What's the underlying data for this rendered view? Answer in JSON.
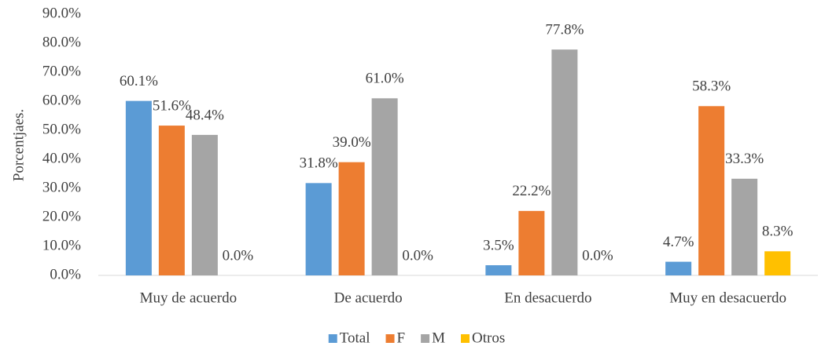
{
  "chart_data": {
    "type": "bar",
    "y_label": "Porcentjaes.",
    "categories": [
      "Muy de acuerdo",
      "De acuerdo",
      "En desacuerdo",
      "Muy en desacuerdo"
    ],
    "series": [
      {
        "name": "Total",
        "color": "#5b9bd5",
        "values": [
          60.1,
          31.8,
          3.5,
          4.7
        ],
        "value_labels": [
          "60.1%",
          "31.8%",
          "3.5%",
          "4.7%"
        ]
      },
      {
        "name": "F",
        "color": "#ed7d31",
        "values": [
          51.6,
          39.0,
          22.2,
          58.3
        ],
        "value_labels": [
          "51.6%",
          "39.0%",
          "22.2%",
          "58.3%"
        ]
      },
      {
        "name": "M",
        "color": "#a5a5a5",
        "values": [
          48.4,
          61.0,
          77.8,
          33.3
        ],
        "value_labels": [
          "48.4%",
          "61.0%",
          "77.8%",
          "33.3%"
        ]
      },
      {
        "name": "Otros",
        "color": "#ffc000",
        "values": [
          0,
          0,
          0,
          8.3
        ],
        "value_labels": [
          "0.0%",
          "0.0%",
          "0.0%",
          "8.3%"
        ]
      }
    ],
    "ylim": [
      0,
      90
    ],
    "yticks": [
      {
        "value": 0,
        "label": "0.0%"
      },
      {
        "value": 10,
        "label": "10.0%"
      },
      {
        "value": 20,
        "label": "20.0%"
      },
      {
        "value": 30,
        "label": "30.0%"
      },
      {
        "value": 40,
        "label": "40.0%"
      },
      {
        "value": 50,
        "label": "50.0%"
      },
      {
        "value": 60,
        "label": "60.0%"
      },
      {
        "value": 70,
        "label": "70.0%"
      },
      {
        "value": 80,
        "label": "80.0%"
      },
      {
        "value": 90,
        "label": "90.0%"
      }
    ],
    "grid": false,
    "legend": "bottom"
  }
}
